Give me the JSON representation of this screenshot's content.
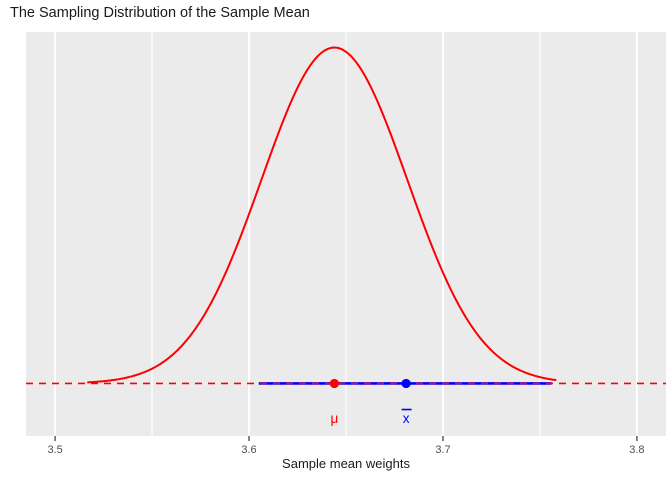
{
  "chart": {
    "title": "The Sampling Distribution of the Sample Mean",
    "xlabel": "Sample mean weights"
  },
  "chart_data": {
    "type": "line",
    "title": "The Sampling Distribution of the Sample Mean",
    "xlabel": "Sample mean weights",
    "ylabel": "",
    "xlim": [
      3.485,
      3.815
    ],
    "ylim": [
      -1.66,
      11.1
    ],
    "x_major_ticks": [
      3.5,
      3.6,
      3.7,
      3.8
    ],
    "x_tick_labels": [
      "3.5",
      "3.6",
      "3.7",
      "3.8"
    ],
    "x_minor_gridlines": [
      3.55,
      3.65,
      3.75
    ],
    "grid": "vertical white gridlines only, gray panel, no y axis",
    "legend_position": "none",
    "panel_bg_color": "#EBEBEB",
    "gridline_color": "#FFFFFF",
    "tick_label_color": "#4D4D4D",
    "tick_mark_color": "#333333",
    "series": [
      {
        "name": "population-reference-line",
        "kind": "horizontal-line",
        "y": 0,
        "x_range": [
          3.485,
          3.815
        ],
        "color": "#FF0000",
        "linestyle": "dashed"
      },
      {
        "name": "sampling-distribution-curve",
        "kind": "normal-density-curve",
        "mu": 3.644,
        "sigma": 0.0376,
        "x_range": [
          3.517,
          3.758
        ],
        "color": "#FF0000",
        "linestyle": "solid"
      },
      {
        "name": "sample-mean-interval",
        "kind": "horizontal-segment",
        "y": 0,
        "x_range": [
          3.605,
          3.756
        ],
        "color": "#0000FF",
        "linestyle": "solid"
      }
    ],
    "points": [
      {
        "name": "mu-point",
        "x": 3.644,
        "y": 0,
        "color": "#FF0000",
        "radius": 4.6
      },
      {
        "name": "xbar-point",
        "x": 3.681,
        "y": 0,
        "color": "#0000FF",
        "radius": 4.6
      }
    ],
    "annotations": [
      {
        "name": "mu-label",
        "text": "μ",
        "base_char": "μ",
        "overline": false,
        "x": 3.644,
        "y": -1.25,
        "color": "#FF0000"
      },
      {
        "name": "xbar-label",
        "text": "x̄",
        "base_char": "x",
        "overline": true,
        "x": 3.681,
        "y": -1.25,
        "color": "#0000FF"
      }
    ]
  }
}
